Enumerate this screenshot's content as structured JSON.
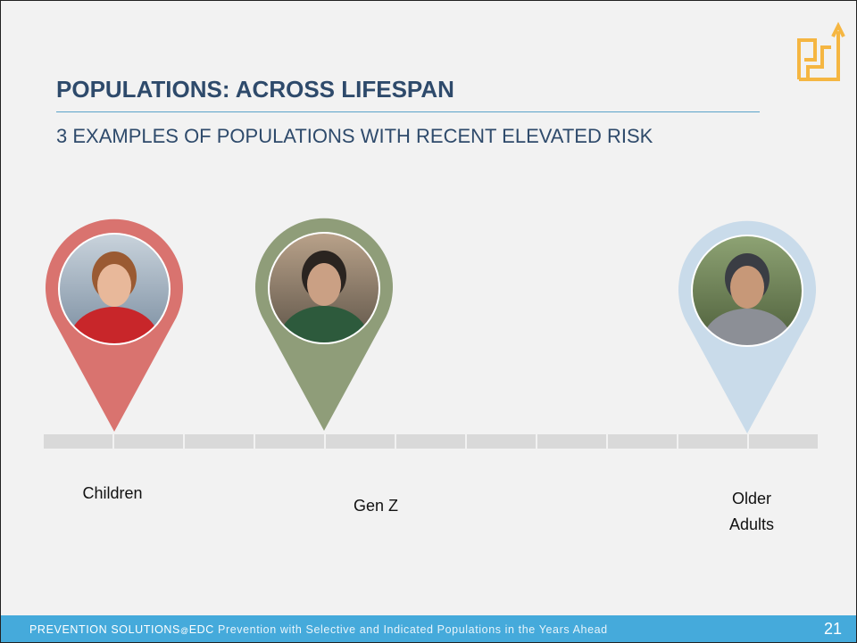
{
  "header": {
    "title": "POPULATIONS: ACROSS LIFESPAN",
    "subtitle": "3 EXAMPLES OF POPULATIONS WITH RECENT ELEVATED RISK"
  },
  "pins": [
    {
      "label": "Children"
    },
    {
      "label": "Gen Z"
    },
    {
      "label": "Older Adults"
    }
  ],
  "footer": {
    "brand": "PREVENTION SOLUTIONS",
    "at": "@",
    "org": "EDC",
    "text": "Prevention with Selective and Indicated Populations in the Years Ahead",
    "page": "21"
  }
}
